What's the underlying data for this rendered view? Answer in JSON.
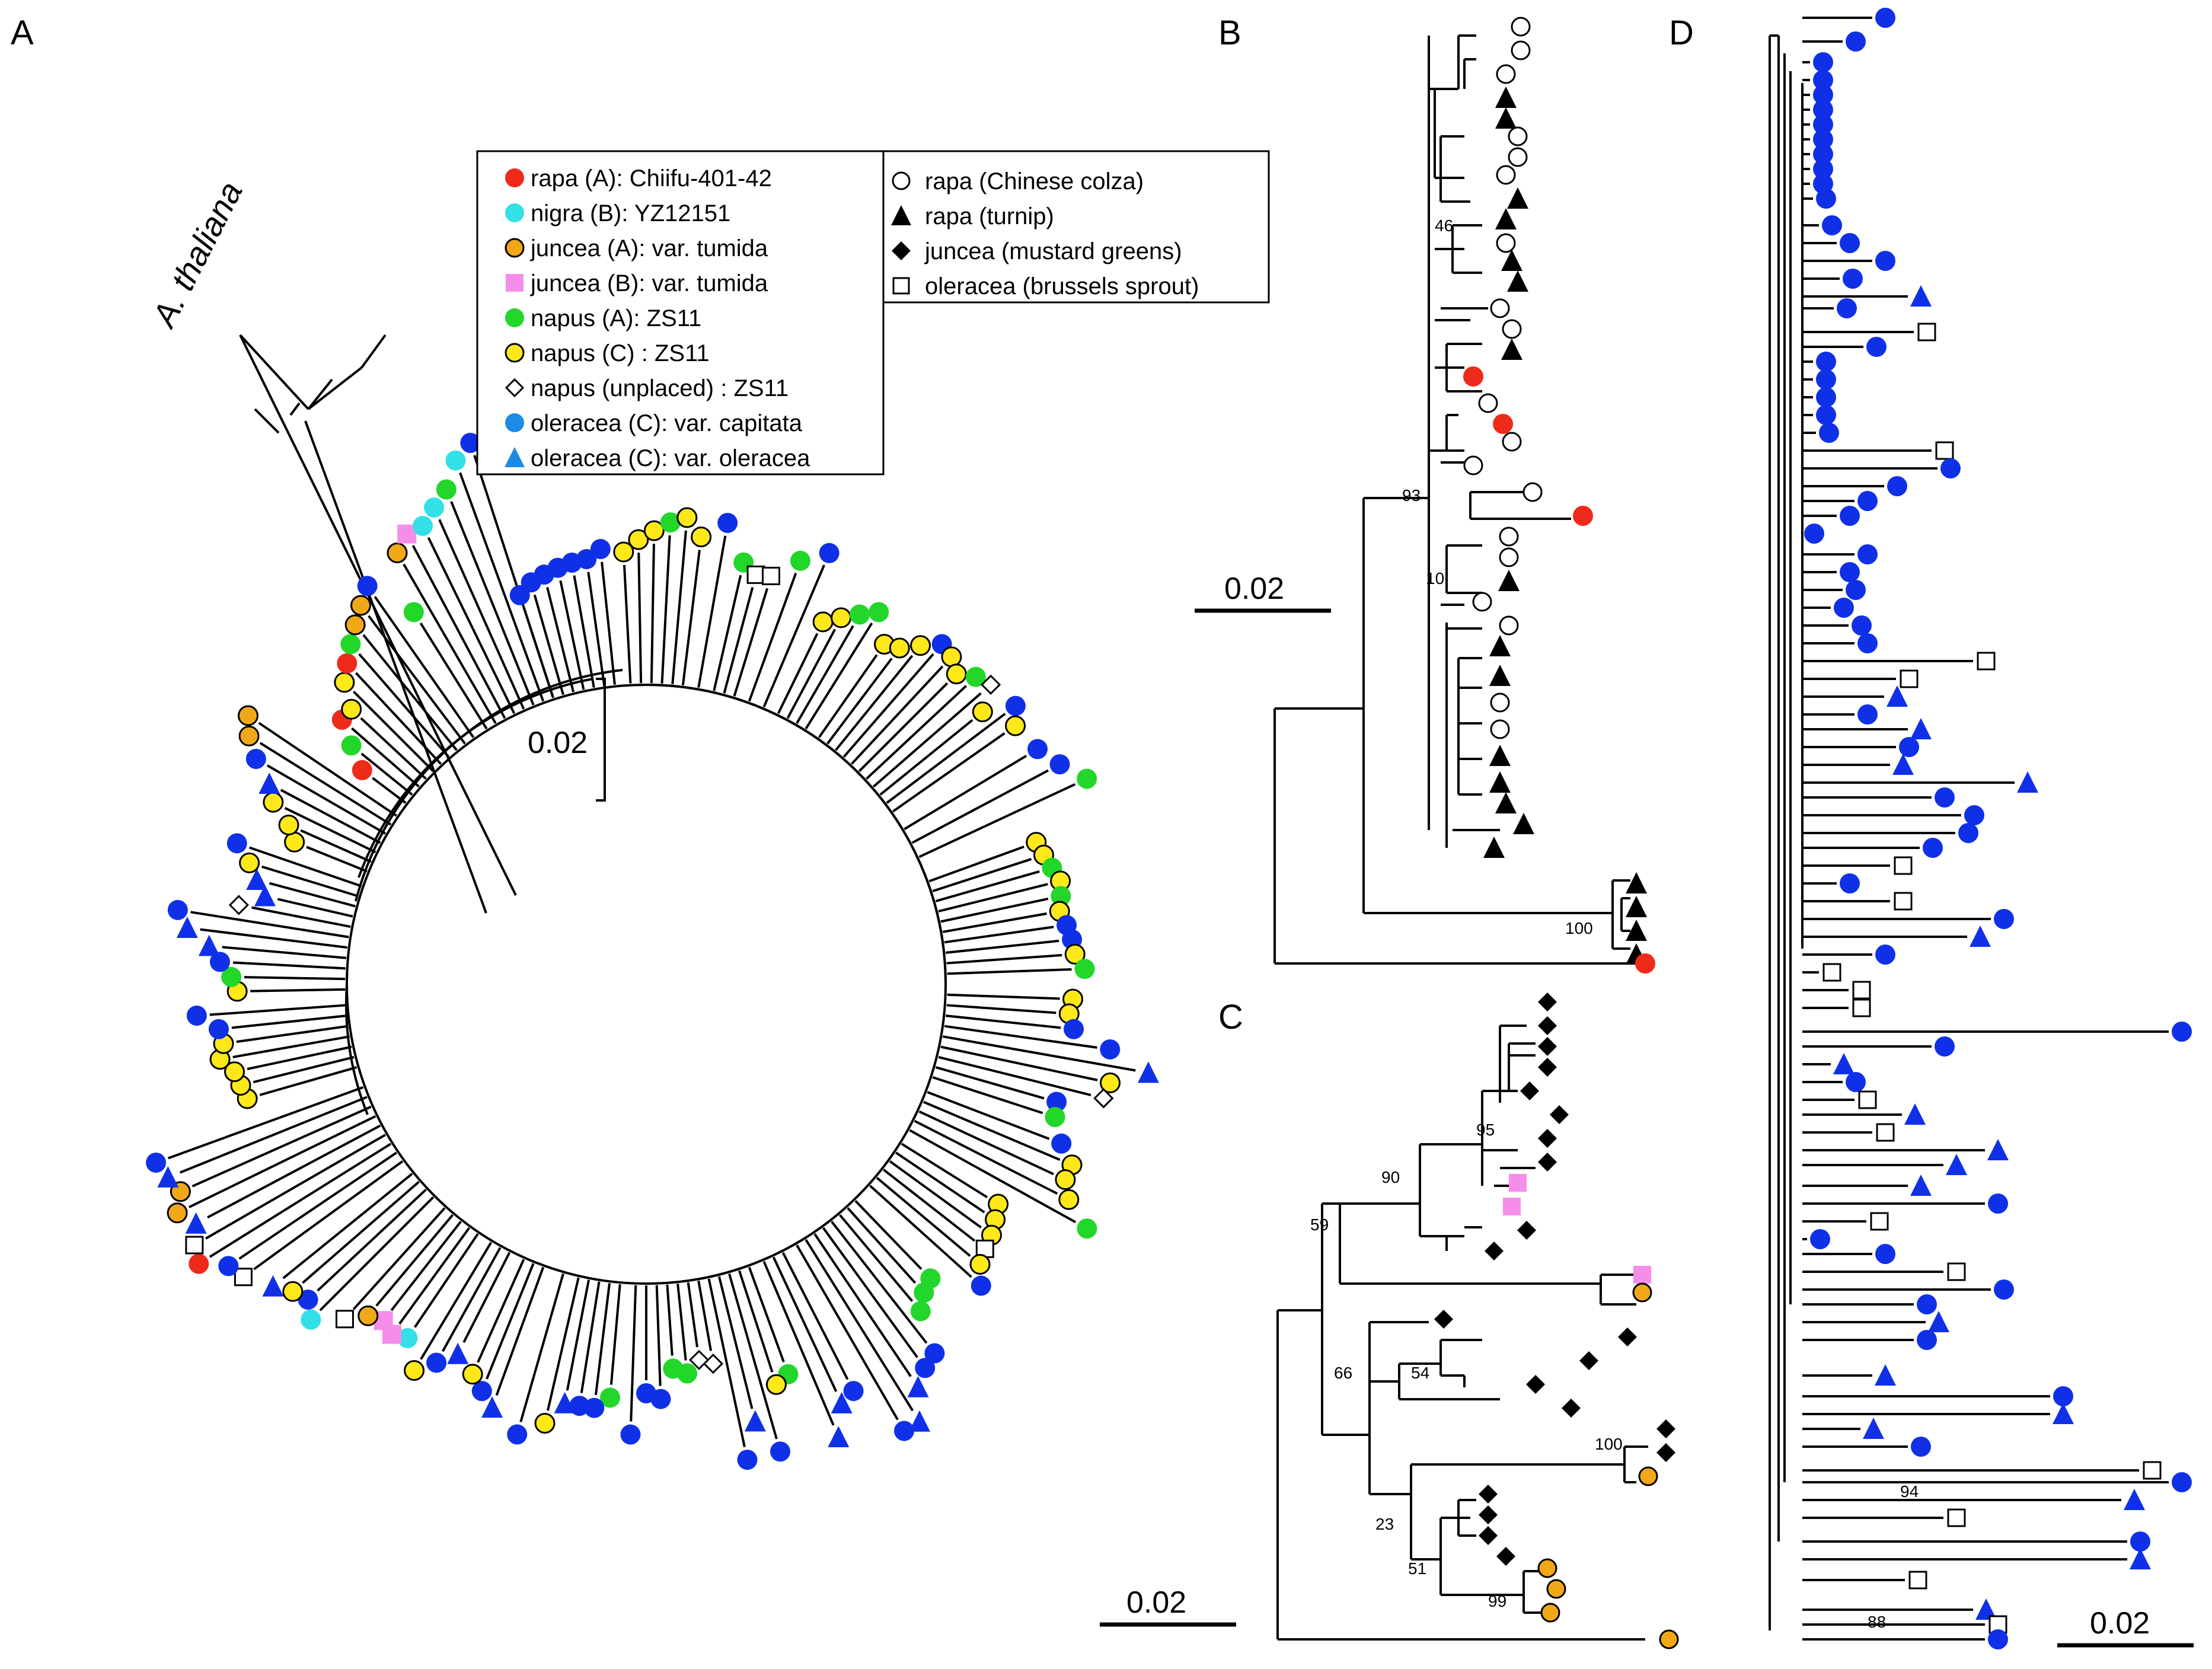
{
  "figure": {
    "panels": {
      "A": "A",
      "B": "B",
      "C": "C",
      "D": "D"
    },
    "outgroup_label": "A. thaliana",
    "scale_bars": {
      "A": "0.02",
      "B": "0.02",
      "C": "0.02",
      "D": "0.02"
    },
    "bootstrap": {
      "B": [
        "46",
        "93",
        "10",
        "100"
      ],
      "C": [
        "95",
        "90",
        "59",
        "66",
        "54",
        "100",
        "23",
        "51",
        "99"
      ],
      "D": [
        "94",
        "88"
      ]
    }
  },
  "legend": {
    "left": [
      {
        "marker": "filled-circle",
        "color": "#ee2a1b",
        "label": "rapa (A): Chiifu-401-42"
      },
      {
        "marker": "filled-circle",
        "color": "#33e0e8",
        "label": "nigra (B): YZ12151"
      },
      {
        "marker": "outlined-circle",
        "color": "#f0a818",
        "label": "juncea (A): var. tumida"
      },
      {
        "marker": "filled-square",
        "color": "#f58ee8",
        "label": "juncea (B): var. tumida"
      },
      {
        "marker": "filled-circle",
        "color": "#22d62a",
        "label": "napus (A): ZS11"
      },
      {
        "marker": "outlined-circle",
        "color": "#ffe81a",
        "label": "napus (C) : ZS11"
      },
      {
        "marker": "open-diamond",
        "color": "#ffffff",
        "label": "napus (unplaced) : ZS11"
      },
      {
        "marker": "filled-circle",
        "color": "#1d8ae6",
        "label": "oleracea (C): var. capitata"
      },
      {
        "marker": "filled-triangle",
        "color": "#1d8ae6",
        "label": "oleracea (C): var. oleracea"
      }
    ],
    "right": [
      {
        "marker": "open-circle",
        "color": "#ffffff",
        "label": "rapa (Chinese colza)"
      },
      {
        "marker": "filled-triangle",
        "color": "#000000",
        "label": "rapa (turnip)"
      },
      {
        "marker": "filled-diamond",
        "color": "#000000",
        "label": "juncea (mustard greens)"
      },
      {
        "marker": "open-square",
        "color": "#ffffff",
        "label": "oleracea (brussels sprout)"
      }
    ]
  },
  "colors": {
    "rapa_A": "#ee2a1b",
    "nigra_B": "#33e0e8",
    "juncea_A": "#f0a818",
    "juncea_B": "#f58ee8",
    "napus_A": "#22d62a",
    "napus_C": "#ffe81a",
    "oleracea_capitata_tree": "#1030e8",
    "black": "#000000"
  }
}
